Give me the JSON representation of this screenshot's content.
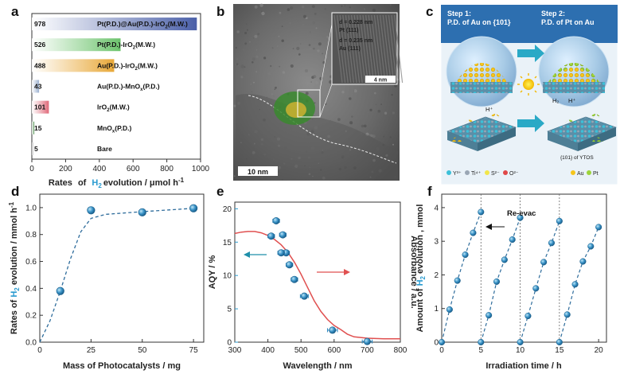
{
  "panel_letters": [
    "a",
    "b",
    "c",
    "d",
    "e",
    "f"
  ],
  "panel_a": {
    "xlabel_parts": [
      "Rates",
      "of",
      "H",
      "2",
      "evolution / μmol h",
      "-1"
    ],
    "xlim": [
      0,
      1000
    ],
    "xticks": [
      "0",
      "200",
      "400",
      "600",
      "800",
      "1000"
    ]
  },
  "panel_b": {
    "scalebar_main": "10 nm",
    "scalebar_inset": "4 nm",
    "inset_lines": [
      "d = 0.228 nm",
      "Pt (111)",
      "d = 0.235 nm",
      "Au (111)"
    ]
  },
  "panel_c": {
    "step1": [
      "Step 1:",
      "P.D. of Au on {101}"
    ],
    "step2": [
      "Step 2:",
      "P.D. of Pt on Au"
    ],
    "h_plus": "H⁺",
    "h2": "H₂",
    "facet": "{101} of YTOS",
    "legend_left": [
      "Y³⁺",
      "Ti⁴⁺",
      "S²⁻",
      "O²⁻"
    ],
    "legend_right": [
      "Au",
      "Pt"
    ]
  },
  "panel_d": {
    "xlabel": "Mass of Photocatalysts / mg",
    "ylabel_parts": [
      "Rates of ",
      "H",
      "2",
      " evolution / mmol h",
      "-1"
    ],
    "xticks": [
      "0",
      "25",
      "50",
      "75"
    ],
    "yticks": [
      "0.0",
      "0.2",
      "0.4",
      "0.6",
      "0.8",
      "1.0"
    ]
  },
  "panel_e": {
    "xlabel": "Wavelength / nm",
    "ylabel_left": "AQY / %",
    "ylabel_right": "Absorbance / a.u.",
    "xticks": [
      "300",
      "400",
      "500",
      "600",
      "700",
      "800"
    ],
    "yticks": [
      "0",
      "5",
      "10",
      "15",
      "20"
    ]
  },
  "panel_f": {
    "xlabel": "Irradiation time / h",
    "ylabel_parts": [
      "Amount of ",
      "H",
      "2",
      " evolution , mmol"
    ],
    "annotation": "Re-evac",
    "xticks": [
      "0",
      "5",
      "10",
      "15",
      "20"
    ],
    "yticks": [
      "0",
      "1",
      "2",
      "3",
      "4"
    ]
  },
  "colors": {
    "point": "#2b88c0",
    "absorbance": "#e05050",
    "aqy_axis": "#2a9bd0",
    "arrow_teal": "#1f8faa",
    "dash": "#2f6d9c"
  },
  "chart_data": [
    {
      "type": "bar",
      "panel": "a",
      "orientation": "horizontal",
      "categories": [
        "Pt(P.D.)@Au(P.D.)-IrO2(M.W.)",
        "Pt(P.D.)-IrO2(M.W.)",
        "Au(P.D.)-IrO2(M.W.)",
        "Au(P.D.)-MnOx(P.D.)",
        "IrO2(M.W.)",
        "MnOx(P.D.)",
        "Bare"
      ],
      "category_display": [
        [
          "Pt(P.D.)@Au(P.D.)-IrO",
          "2",
          "(M.W.)"
        ],
        [
          "Pt(P.D.)-IrO",
          "2",
          "(M.W.)"
        ],
        [
          "Au(P.D.)-IrO",
          "2",
          "(M.W.)"
        ],
        [
          "Au(P.D.)-MnO",
          "x",
          "(P.D.)"
        ],
        [
          "IrO",
          "2",
          "(M.W.)"
        ],
        [
          "MnO",
          "x",
          "(P.D.)"
        ],
        [
          "Bare",
          "",
          ""
        ]
      ],
      "values": [
        978,
        526,
        488,
        43,
        101,
        15,
        5
      ],
      "value_labels": [
        "978",
        "526",
        "488",
        "43",
        "101",
        "15",
        "5"
      ],
      "bar_colors": [
        "#4a5fa8",
        "#6cc36c",
        "#e8a838",
        "#9ab0d0",
        "#e06a7a",
        "#6aa06a",
        "#999999"
      ],
      "xlim": [
        0,
        1000
      ]
    },
    {
      "type": "scatter",
      "panel": "d",
      "x": [
        10,
        25,
        50,
        75
      ],
      "y": [
        0.38,
        0.98,
        0.965,
        0.995
      ],
      "fit": [
        [
          0,
          0
        ],
        [
          5,
          0.16
        ],
        [
          10,
          0.38
        ],
        [
          15,
          0.62
        ],
        [
          20,
          0.82
        ],
        [
          25,
          0.92
        ],
        [
          32,
          0.95
        ],
        [
          50,
          0.97
        ],
        [
          75,
          0.995
        ]
      ],
      "xlim": [
        0,
        80
      ],
      "ylim": [
        0,
        1.1
      ]
    },
    {
      "type": "scatter",
      "panel": "e",
      "series": [
        {
          "name": "AQY",
          "x": [
            425,
            445,
            410,
            455,
            440,
            465,
            480,
            510,
            595,
            700
          ],
          "y": [
            18.2,
            16.1,
            15.9,
            13.4,
            13.4,
            11.6,
            9.4,
            6.9,
            1.8,
            0.1
          ],
          "xerr": [
            10,
            10,
            10,
            10,
            10,
            10,
            10,
            12,
            15,
            15
          ]
        }
      ],
      "absorbance_curve": [
        [
          300,
          16.3
        ],
        [
          320,
          16.5
        ],
        [
          340,
          16.6
        ],
        [
          360,
          16.6
        ],
        [
          380,
          16.4
        ],
        [
          400,
          16.0
        ],
        [
          420,
          15.4
        ],
        [
          440,
          14.6
        ],
        [
          460,
          13.5
        ],
        [
          480,
          12.0
        ],
        [
          500,
          10.2
        ],
        [
          520,
          8.2
        ],
        [
          540,
          6.2
        ],
        [
          560,
          4.6
        ],
        [
          580,
          3.4
        ],
        [
          600,
          2.5
        ],
        [
          620,
          1.9
        ],
        [
          640,
          1.2
        ],
        [
          660,
          0.8
        ],
        [
          700,
          0.6
        ],
        [
          750,
          0.5
        ],
        [
          800,
          0.5
        ]
      ],
      "xlim": [
        300,
        800
      ],
      "ylim": [
        0,
        21
      ]
    },
    {
      "type": "scatter",
      "panel": "f",
      "cycles": [
        {
          "x": [
            0,
            1,
            2,
            3,
            4,
            5
          ],
          "y": [
            0,
            0.97,
            1.83,
            2.6,
            3.25,
            3.87
          ]
        },
        {
          "x": [
            5,
            6,
            7,
            8,
            9,
            10
          ],
          "y": [
            0,
            0.8,
            1.8,
            2.45,
            3.05,
            3.7
          ]
        },
        {
          "x": [
            10,
            11,
            12,
            13,
            14,
            15
          ],
          "y": [
            0,
            0.78,
            1.6,
            2.38,
            2.95,
            3.6
          ]
        },
        {
          "x": [
            15,
            16,
            17,
            18,
            19,
            20
          ],
          "y": [
            0,
            0.82,
            1.72,
            2.4,
            2.85,
            3.42
          ]
        }
      ],
      "dividers": [
        5,
        10,
        15
      ],
      "xlim": [
        0,
        21
      ],
      "ylim": [
        0,
        4.4
      ]
    }
  ]
}
